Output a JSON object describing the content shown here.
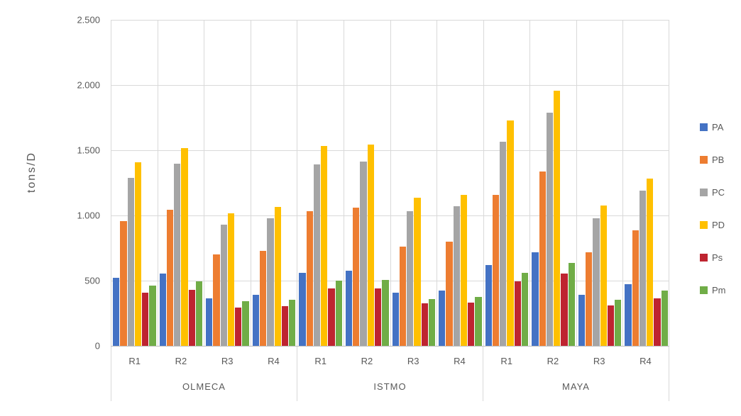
{
  "chart_data": {
    "type": "bar",
    "title": "",
    "ylabel": "tons/D",
    "xlabel": "",
    "ylim": [
      0,
      2500
    ],
    "ytick_interval": 500,
    "ytick_labels": [
      "2.500",
      "2.000",
      "1.500",
      "1.000",
      "500",
      "0"
    ],
    "grid": true,
    "legend_position": "right",
    "regions": [
      "OLMECA",
      "ISTMO",
      "MAYA"
    ],
    "categories_per_region": [
      "R1",
      "R2",
      "R3",
      "R4"
    ],
    "x_categories": [
      "R1",
      "R2",
      "R3",
      "R4",
      "R1",
      "R2",
      "R3",
      "R4",
      "R1",
      "R2",
      "R3",
      "R4"
    ],
    "series": [
      {
        "name": "PA",
        "color": "#4472C4",
        "values": [
          520,
          555,
          365,
          390,
          560,
          575,
          410,
          425,
          620,
          720,
          390,
          475
        ]
      },
      {
        "name": "PB",
        "color": "#ED7D31",
        "values": [
          955,
          1045,
          700,
          730,
          1035,
          1060,
          760,
          800,
          1155,
          1335,
          720,
          885
        ]
      },
      {
        "name": "PC",
        "color": "#A5A5A5",
        "values": [
          1290,
          1395,
          930,
          980,
          1390,
          1415,
          1035,
          1070,
          1565,
          1790,
          980,
          1190
        ]
      },
      {
        "name": "PD",
        "color": "#FFC000",
        "values": [
          1410,
          1515,
          1015,
          1065,
          1530,
          1545,
          1135,
          1160,
          1730,
          1955,
          1075,
          1285
        ]
      },
      {
        "name": "Ps",
        "color": "#BE2430",
        "values": [
          410,
          430,
          295,
          305,
          440,
          440,
          325,
          330,
          495,
          555,
          310,
          365
        ]
      },
      {
        "name": "Pm",
        "color": "#70AD47",
        "values": [
          460,
          495,
          340,
          355,
          500,
          505,
          360,
          375,
          560,
          635,
          355,
          425
        ]
      }
    ]
  }
}
